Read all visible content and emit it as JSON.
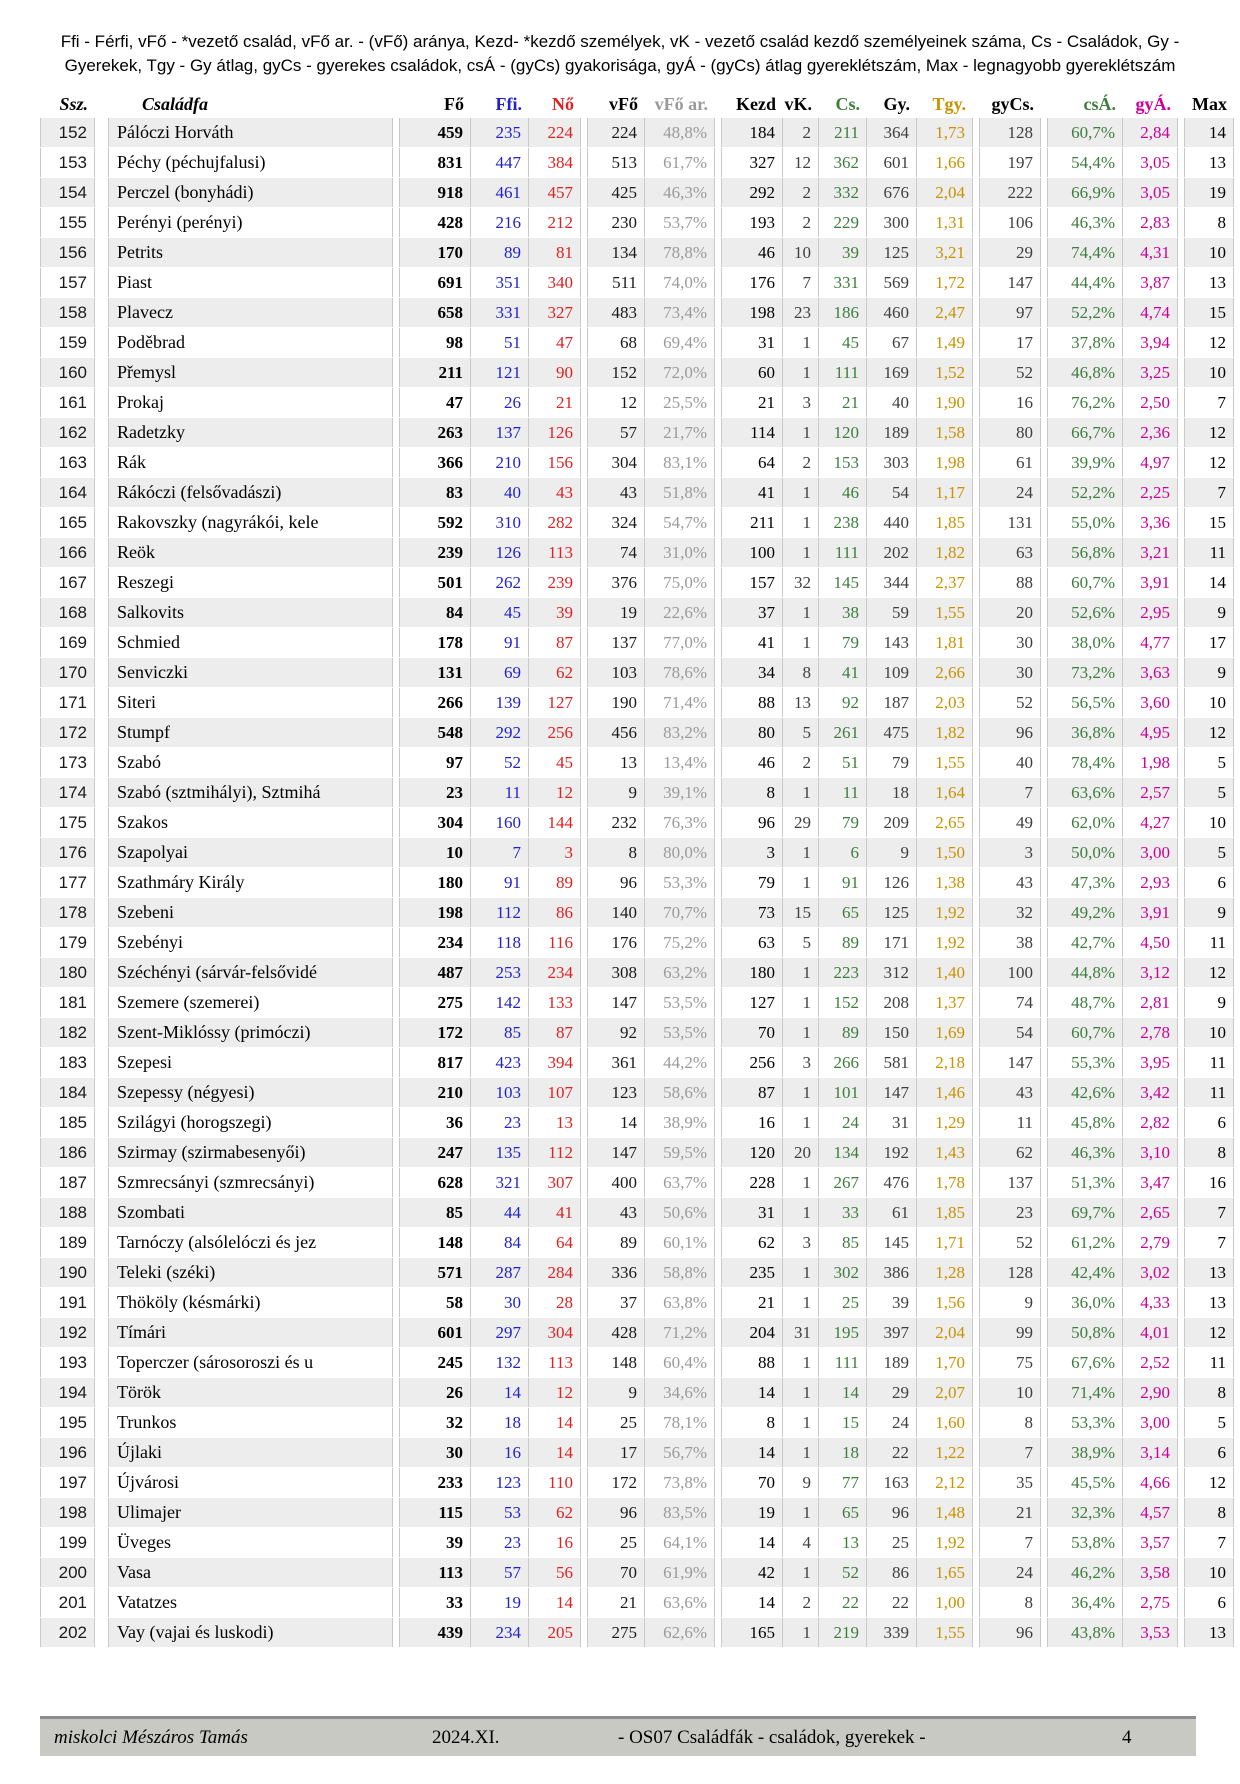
{
  "header": {
    "legend_line1": "Ffi - Férfi, vFő - *vezető család, vFő ar. - (vFő) aránya, Kezd- *kezdő személyek, vK - vezető család kezdő személyeinek száma, Cs - Családok,  Gy -",
    "legend_line2": "Gyerekek, Tgy - Gy átlag,  gyCs - gyerekes családok, csÁ - (gyCs) gyakorisága, gyÁ - (gyCs) átlag gyereklétszám, Max - legnagyobb gyereklétszám"
  },
  "colors": {
    "stripe_bg": "#ededed",
    "cell_border": "#c9c9c9",
    "footer_bg": "#c9c9c4",
    "footer_border": "#8c8c8c",
    "blue": "#2222cc",
    "red": "#dd2222",
    "light_gray": "#9a9a9a",
    "dark_gray": "#3f3f3f",
    "green": "#3e7d3e",
    "gold": "#c89200",
    "magenta": "#cc0099",
    "black": "#000000"
  },
  "table": {
    "columns": [
      {
        "key": "ssz",
        "label": "Ssz.",
        "color": "#1a1a1a",
        "hcolor": "#000000"
      },
      {
        "key": "name",
        "label": "Családfa",
        "color": "#000000",
        "hcolor": "#000000"
      },
      {
        "key": "fo",
        "label": "Fő",
        "color": "#000000",
        "hcolor": "#000000"
      },
      {
        "key": "ffi",
        "label": "Ffi.",
        "color": "#2222cc",
        "hcolor": "#2222cc"
      },
      {
        "key": "no",
        "label": "Nő",
        "color": "#dd2222",
        "hcolor": "#dd2222"
      },
      {
        "key": "vfo",
        "label": "vFő",
        "color": "#1a1a1a",
        "hcolor": "#000000"
      },
      {
        "key": "vfoar",
        "label": "vFő ar.",
        "color": "#9a9a9a",
        "hcolor": "#9a9a9a"
      },
      {
        "key": "kezd",
        "label": "Kezd",
        "color": "#000000",
        "hcolor": "#000000"
      },
      {
        "key": "vk",
        "label": "vK.",
        "color": "#3f3f3f",
        "hcolor": "#000000"
      },
      {
        "key": "cs",
        "label": "Cs.",
        "color": "#3e7d3e",
        "hcolor": "#3e7d3e"
      },
      {
        "key": "gy",
        "label": "Gy.",
        "color": "#3f3f3f",
        "hcolor": "#000000"
      },
      {
        "key": "tgy",
        "label": "Tgy.",
        "color": "#c89200",
        "hcolor": "#c89200"
      },
      {
        "key": "gycs",
        "label": "gyCs.",
        "color": "#3f3f3f",
        "hcolor": "#000000"
      },
      {
        "key": "csa",
        "label": "csÁ.",
        "color": "#3e7d3e",
        "hcolor": "#3e7d3e"
      },
      {
        "key": "gya",
        "label": "gyÁ.",
        "color": "#cc0099",
        "hcolor": "#cc0099"
      },
      {
        "key": "max",
        "label": "Max",
        "color": "#000000",
        "hcolor": "#000000"
      }
    ],
    "rows": [
      [
        "152",
        "Pálóczi Horváth",
        "459",
        "235",
        "224",
        "224",
        "48,8%",
        "184",
        "2",
        "211",
        "364",
        "1,73",
        "128",
        "60,7%",
        "2,84",
        "14"
      ],
      [
        "153",
        "Péchy (péchujfalusi)",
        "831",
        "447",
        "384",
        "513",
        "61,7%",
        "327",
        "12",
        "362",
        "601",
        "1,66",
        "197",
        "54,4%",
        "3,05",
        "13"
      ],
      [
        "154",
        "Perczel (bonyhádi)",
        "918",
        "461",
        "457",
        "425",
        "46,3%",
        "292",
        "2",
        "332",
        "676",
        "2,04",
        "222",
        "66,9%",
        "3,05",
        "19"
      ],
      [
        "155",
        "Perényi (perényi)",
        "428",
        "216",
        "212",
        "230",
        "53,7%",
        "193",
        "2",
        "229",
        "300",
        "1,31",
        "106",
        "46,3%",
        "2,83",
        "8"
      ],
      [
        "156",
        "Petrits",
        "170",
        "89",
        "81",
        "134",
        "78,8%",
        "46",
        "10",
        "39",
        "125",
        "3,21",
        "29",
        "74,4%",
        "4,31",
        "10"
      ],
      [
        "157",
        "Piast",
        "691",
        "351",
        "340",
        "511",
        "74,0%",
        "176",
        "7",
        "331",
        "569",
        "1,72",
        "147",
        "44,4%",
        "3,87",
        "13"
      ],
      [
        "158",
        "Plavecz",
        "658",
        "331",
        "327",
        "483",
        "73,4%",
        "198",
        "23",
        "186",
        "460",
        "2,47",
        "97",
        "52,2%",
        "4,74",
        "15"
      ],
      [
        "159",
        "Poděbrad",
        "98",
        "51",
        "47",
        "68",
        "69,4%",
        "31",
        "1",
        "45",
        "67",
        "1,49",
        "17",
        "37,8%",
        "3,94",
        "12"
      ],
      [
        "160",
        "Přemysl",
        "211",
        "121",
        "90",
        "152",
        "72,0%",
        "60",
        "1",
        "111",
        "169",
        "1,52",
        "52",
        "46,8%",
        "3,25",
        "10"
      ],
      [
        "161",
        "Prokaj",
        "47",
        "26",
        "21",
        "12",
        "25,5%",
        "21",
        "3",
        "21",
        "40",
        "1,90",
        "16",
        "76,2%",
        "2,50",
        "7"
      ],
      [
        "162",
        "Radetzky",
        "263",
        "137",
        "126",
        "57",
        "21,7%",
        "114",
        "1",
        "120",
        "189",
        "1,58",
        "80",
        "66,7%",
        "2,36",
        "12"
      ],
      [
        "163",
        "Rák",
        "366",
        "210",
        "156",
        "304",
        "83,1%",
        "64",
        "2",
        "153",
        "303",
        "1,98",
        "61",
        "39,9%",
        "4,97",
        "12"
      ],
      [
        "164",
        "Rákóczi (felsővadászi)",
        "83",
        "40",
        "43",
        "43",
        "51,8%",
        "41",
        "1",
        "46",
        "54",
        "1,17",
        "24",
        "52,2%",
        "2,25",
        "7"
      ],
      [
        "165",
        "Rakovszky (nagyrákói, kele",
        "592",
        "310",
        "282",
        "324",
        "54,7%",
        "211",
        "1",
        "238",
        "440",
        "1,85",
        "131",
        "55,0%",
        "3,36",
        "15"
      ],
      [
        "166",
        "Reök",
        "239",
        "126",
        "113",
        "74",
        "31,0%",
        "100",
        "1",
        "111",
        "202",
        "1,82",
        "63",
        "56,8%",
        "3,21",
        "11"
      ],
      [
        "167",
        "Reszegi",
        "501",
        "262",
        "239",
        "376",
        "75,0%",
        "157",
        "32",
        "145",
        "344",
        "2,37",
        "88",
        "60,7%",
        "3,91",
        "14"
      ],
      [
        "168",
        "Salkovits",
        "84",
        "45",
        "39",
        "19",
        "22,6%",
        "37",
        "1",
        "38",
        "59",
        "1,55",
        "20",
        "52,6%",
        "2,95",
        "9"
      ],
      [
        "169",
        "Schmied",
        "178",
        "91",
        "87",
        "137",
        "77,0%",
        "41",
        "1",
        "79",
        "143",
        "1,81",
        "30",
        "38,0%",
        "4,77",
        "17"
      ],
      [
        "170",
        "Senviczki",
        "131",
        "69",
        "62",
        "103",
        "78,6%",
        "34",
        "8",
        "41",
        "109",
        "2,66",
        "30",
        "73,2%",
        "3,63",
        "9"
      ],
      [
        "171",
        "Siteri",
        "266",
        "139",
        "127",
        "190",
        "71,4%",
        "88",
        "13",
        "92",
        "187",
        "2,03",
        "52",
        "56,5%",
        "3,60",
        "10"
      ],
      [
        "172",
        "Stumpf",
        "548",
        "292",
        "256",
        "456",
        "83,2%",
        "80",
        "5",
        "261",
        "475",
        "1,82",
        "96",
        "36,8%",
        "4,95",
        "12"
      ],
      [
        "173",
        "Szabó",
        "97",
        "52",
        "45",
        "13",
        "13,4%",
        "46",
        "2",
        "51",
        "79",
        "1,55",
        "40",
        "78,4%",
        "1,98",
        "5"
      ],
      [
        "174",
        "Szabó (sztmihályi), Sztmihá",
        "23",
        "11",
        "12",
        "9",
        "39,1%",
        "8",
        "1",
        "11",
        "18",
        "1,64",
        "7",
        "63,6%",
        "2,57",
        "5"
      ],
      [
        "175",
        "Szakos",
        "304",
        "160",
        "144",
        "232",
        "76,3%",
        "96",
        "29",
        "79",
        "209",
        "2,65",
        "49",
        "62,0%",
        "4,27",
        "10"
      ],
      [
        "176",
        "Szapolyai",
        "10",
        "7",
        "3",
        "8",
        "80,0%",
        "3",
        "1",
        "6",
        "9",
        "1,50",
        "3",
        "50,0%",
        "3,00",
        "5"
      ],
      [
        "177",
        "Szathmáry Király",
        "180",
        "91",
        "89",
        "96",
        "53,3%",
        "79",
        "1",
        "91",
        "126",
        "1,38",
        "43",
        "47,3%",
        "2,93",
        "6"
      ],
      [
        "178",
        "Szebeni",
        "198",
        "112",
        "86",
        "140",
        "70,7%",
        "73",
        "15",
        "65",
        "125",
        "1,92",
        "32",
        "49,2%",
        "3,91",
        "9"
      ],
      [
        "179",
        "Szebényi",
        "234",
        "118",
        "116",
        "176",
        "75,2%",
        "63",
        "5",
        "89",
        "171",
        "1,92",
        "38",
        "42,7%",
        "4,50",
        "11"
      ],
      [
        "180",
        "Széchényi (sárvár-felsővidé",
        "487",
        "253",
        "234",
        "308",
        "63,2%",
        "180",
        "1",
        "223",
        "312",
        "1,40",
        "100",
        "44,8%",
        "3,12",
        "12"
      ],
      [
        "181",
        "Szemere (szemerei)",
        "275",
        "142",
        "133",
        "147",
        "53,5%",
        "127",
        "1",
        "152",
        "208",
        "1,37",
        "74",
        "48,7%",
        "2,81",
        "9"
      ],
      [
        "182",
        "Szent-Miklóssy (primóczi)",
        "172",
        "85",
        "87",
        "92",
        "53,5%",
        "70",
        "1",
        "89",
        "150",
        "1,69",
        "54",
        "60,7%",
        "2,78",
        "10"
      ],
      [
        "183",
        "Szepesi",
        "817",
        "423",
        "394",
        "361",
        "44,2%",
        "256",
        "3",
        "266",
        "581",
        "2,18",
        "147",
        "55,3%",
        "3,95",
        "11"
      ],
      [
        "184",
        "Szepessy (négyesi)",
        "210",
        "103",
        "107",
        "123",
        "58,6%",
        "87",
        "1",
        "101",
        "147",
        "1,46",
        "43",
        "42,6%",
        "3,42",
        "11"
      ],
      [
        "185",
        "Szilágyi (horogszegi)",
        "36",
        "23",
        "13",
        "14",
        "38,9%",
        "16",
        "1",
        "24",
        "31",
        "1,29",
        "11",
        "45,8%",
        "2,82",
        "6"
      ],
      [
        "186",
        "Szirmay (szirmabesenyői)",
        "247",
        "135",
        "112",
        "147",
        "59,5%",
        "120",
        "20",
        "134",
        "192",
        "1,43",
        "62",
        "46,3%",
        "3,10",
        "8"
      ],
      [
        "187",
        "Szmrecsányi (szmrecsányi)",
        "628",
        "321",
        "307",
        "400",
        "63,7%",
        "228",
        "1",
        "267",
        "476",
        "1,78",
        "137",
        "51,3%",
        "3,47",
        "16"
      ],
      [
        "188",
        "Szombati",
        "85",
        "44",
        "41",
        "43",
        "50,6%",
        "31",
        "1",
        "33",
        "61",
        "1,85",
        "23",
        "69,7%",
        "2,65",
        "7"
      ],
      [
        "189",
        "Tarnóczy (alsólelóczi és jez",
        "148",
        "84",
        "64",
        "89",
        "60,1%",
        "62",
        "3",
        "85",
        "145",
        "1,71",
        "52",
        "61,2%",
        "2,79",
        "7"
      ],
      [
        "190",
        "Teleki (széki)",
        "571",
        "287",
        "284",
        "336",
        "58,8%",
        "235",
        "1",
        "302",
        "386",
        "1,28",
        "128",
        "42,4%",
        "3,02",
        "13"
      ],
      [
        "191",
        "Thököly (késmárki)",
        "58",
        "30",
        "28",
        "37",
        "63,8%",
        "21",
        "1",
        "25",
        "39",
        "1,56",
        "9",
        "36,0%",
        "4,33",
        "13"
      ],
      [
        "192",
        "Tímári",
        "601",
        "297",
        "304",
        "428",
        "71,2%",
        "204",
        "31",
        "195",
        "397",
        "2,04",
        "99",
        "50,8%",
        "4,01",
        "12"
      ],
      [
        "193",
        "Toperczer (sárosoroszi és u",
        "245",
        "132",
        "113",
        "148",
        "60,4%",
        "88",
        "1",
        "111",
        "189",
        "1,70",
        "75",
        "67,6%",
        "2,52",
        "11"
      ],
      [
        "194",
        "Török",
        "26",
        "14",
        "12",
        "9",
        "34,6%",
        "14",
        "1",
        "14",
        "29",
        "2,07",
        "10",
        "71,4%",
        "2,90",
        "8"
      ],
      [
        "195",
        "Trunkos",
        "32",
        "18",
        "14",
        "25",
        "78,1%",
        "8",
        "1",
        "15",
        "24",
        "1,60",
        "8",
        "53,3%",
        "3,00",
        "5"
      ],
      [
        "196",
        "Újlaki",
        "30",
        "16",
        "14",
        "17",
        "56,7%",
        "14",
        "1",
        "18",
        "22",
        "1,22",
        "7",
        "38,9%",
        "3,14",
        "6"
      ],
      [
        "197",
        "Újvárosi",
        "233",
        "123",
        "110",
        "172",
        "73,8%",
        "70",
        "9",
        "77",
        "163",
        "2,12",
        "35",
        "45,5%",
        "4,66",
        "12"
      ],
      [
        "198",
        "Ulimajer",
        "115",
        "53",
        "62",
        "96",
        "83,5%",
        "19",
        "1",
        "65",
        "96",
        "1,48",
        "21",
        "32,3%",
        "4,57",
        "8"
      ],
      [
        "199",
        "Üveges",
        "39",
        "23",
        "16",
        "25",
        "64,1%",
        "14",
        "4",
        "13",
        "25",
        "1,92",
        "7",
        "53,8%",
        "3,57",
        "7"
      ],
      [
        "200",
        "Vasa",
        "113",
        "57",
        "56",
        "70",
        "61,9%",
        "42",
        "1",
        "52",
        "86",
        "1,65",
        "24",
        "46,2%",
        "3,58",
        "10"
      ],
      [
        "201",
        "Vatatzes",
        "33",
        "19",
        "14",
        "21",
        "63,6%",
        "14",
        "2",
        "22",
        "22",
        "1,00",
        "8",
        "36,4%",
        "2,75",
        "6"
      ],
      [
        "202",
        "Vay (vajai és luskodi)",
        "439",
        "234",
        "205",
        "275",
        "62,6%",
        "165",
        "1",
        "219",
        "339",
        "1,55",
        "96",
        "43,8%",
        "3,53",
        "13"
      ]
    ]
  },
  "footer": {
    "author": "miskolci Mészáros Tamás",
    "date": "2024.XI.",
    "doc_title": "- OS07  Családfák - családok, gyerekek -",
    "page_number": "4"
  }
}
